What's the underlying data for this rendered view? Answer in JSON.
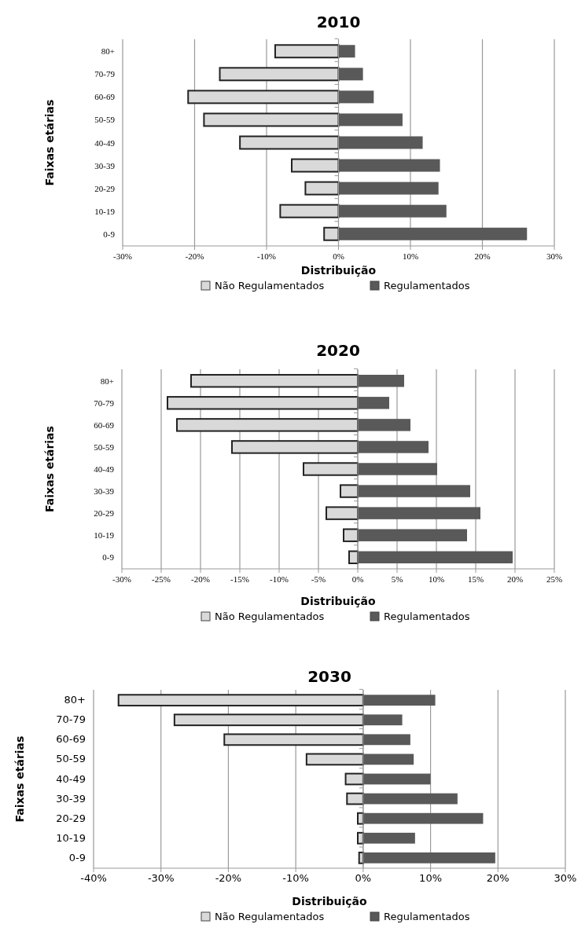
{
  "chart_data": [
    {
      "type": "bar",
      "orientation": "horizontal",
      "stacked": true,
      "title": "2010",
      "xlabel": "Distribuição",
      "ylabel": "Faixas etárias",
      "categories": [
        "80+",
        "70-79",
        "60-69",
        "50-59",
        "40-49",
        "30-39",
        "20-29",
        "10-19",
        "0-9"
      ],
      "series": [
        {
          "name": "Não Regulamentados",
          "color": "#d9d9d9",
          "values": [
            -8.8,
            -16.5,
            -20.9,
            -18.7,
            -13.7,
            -6.5,
            -4.6,
            -8.1,
            -2.0
          ]
        },
        {
          "name": "Regulamentados",
          "color": "#595959",
          "values": [
            2.3,
            3.4,
            4.9,
            8.9,
            11.7,
            14.1,
            13.9,
            15.0,
            26.2
          ]
        }
      ],
      "xlim": [
        -30,
        30
      ],
      "xticks": [
        {
          "value": -30,
          "label": "-30%"
        },
        {
          "value": -20,
          "label": "-20%"
        },
        {
          "value": -10,
          "label": "-10%"
        },
        {
          "value": 0,
          "label": "0%"
        },
        {
          "value": 10,
          "label": "10%"
        },
        {
          "value": 20,
          "label": "20%"
        },
        {
          "value": 30,
          "label": "30%"
        }
      ],
      "grid": "x",
      "legend": "bottom"
    },
    {
      "type": "bar",
      "orientation": "horizontal",
      "stacked": true,
      "title": "2020",
      "xlabel": "Distribuição",
      "ylabel": "Faixas etárias",
      "categories": [
        "80+",
        "70-79",
        "60-69",
        "50-59",
        "40-49",
        "30-39",
        "20-29",
        "10-19",
        "0-9"
      ],
      "series": [
        {
          "name": "Não Regulamentados",
          "color": "#d9d9d9",
          "values": [
            -21.2,
            -24.2,
            -23.0,
            -16.0,
            -6.9,
            -2.2,
            -4.0,
            -1.8,
            -1.1
          ]
        },
        {
          "name": "Regulamentados",
          "color": "#595959",
          "values": [
            5.9,
            4.0,
            6.7,
            9.0,
            10.1,
            14.3,
            15.6,
            13.9,
            19.7
          ]
        }
      ],
      "xlim": [
        -30,
        25
      ],
      "xticks": [
        {
          "value": -30,
          "label": "-30%"
        },
        {
          "value": -25,
          "label": "-25%"
        },
        {
          "value": -20,
          "label": "-20%"
        },
        {
          "value": -15,
          "label": "-15%"
        },
        {
          "value": -10,
          "label": "-10%"
        },
        {
          "value": -5,
          "label": "-5%"
        },
        {
          "value": 0,
          "label": "0%"
        },
        {
          "value": 5,
          "label": "5%"
        },
        {
          "value": 10,
          "label": "10%"
        },
        {
          "value": 15,
          "label": "15%"
        },
        {
          "value": 20,
          "label": "20%"
        },
        {
          "value": 25,
          "label": "25%"
        }
      ],
      "grid": "x",
      "legend": "bottom"
    },
    {
      "type": "bar",
      "orientation": "horizontal",
      "stacked": true,
      "title": "2030",
      "xlabel": "Distribuição",
      "ylabel": "Faixas etárias",
      "categories": [
        "80+",
        "70-79",
        "60-69",
        "50-59",
        "40-49",
        "30-39",
        "20-29",
        "10-19",
        "0-9"
      ],
      "series": [
        {
          "name": "Não Regulamentados",
          "color": "#d9d9d9",
          "values": [
            -36.3,
            -28.0,
            -20.6,
            -8.4,
            -2.6,
            -2.4,
            -0.8,
            -0.8,
            -0.6
          ]
        },
        {
          "name": "Regulamentados",
          "color": "#595959",
          "values": [
            10.7,
            5.8,
            7.0,
            7.5,
            10.0,
            14.0,
            17.8,
            7.7,
            19.6
          ]
        }
      ],
      "xlim": [
        -40,
        30
      ],
      "xticks": [
        {
          "value": -40,
          "label": "-40%"
        },
        {
          "value": -30,
          "label": "-30%"
        },
        {
          "value": -20,
          "label": "-20%"
        },
        {
          "value": -10,
          "label": "-10%"
        },
        {
          "value": 0,
          "label": "0%"
        },
        {
          "value": 10,
          "label": "10%"
        },
        {
          "value": 20,
          "label": "20%"
        },
        {
          "value": 30,
          "label": "30%"
        }
      ],
      "grid": "x",
      "legend": "bottom"
    }
  ]
}
